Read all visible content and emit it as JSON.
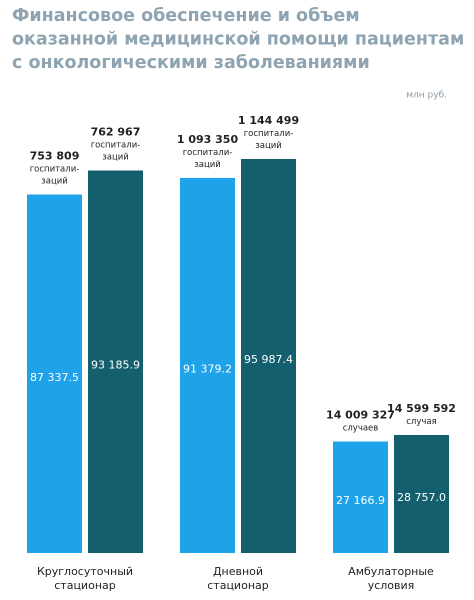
{
  "chart_data": {
    "type": "bar",
    "title": "Финансовое обеспечение и объем\nоказанной медицинской помощи пациентам\nс онкологическими заболеваниями",
    "unit": "млн руб.",
    "categories": [
      "Круглосуточный\nстационар",
      "Дневной\nстационар",
      "Амбулаторные\nусловия"
    ],
    "series": [
      {
        "color": "#1ea2e9",
        "values": [
          87337.5,
          91379.2,
          27166.9
        ],
        "value_labels": [
          "87 337.5",
          "91 379.2",
          "27 166.9"
        ],
        "annotations": [
          {
            "count": "753 809",
            "note": "госпитали-\nзаций"
          },
          {
            "count": "1 093 350",
            "note": "госпитали-\nзаций"
          },
          {
            "count": "14 009 327",
            "note": "случаев"
          }
        ]
      },
      {
        "color": "#135f6d",
        "values": [
          93185.9,
          95987.4,
          28757.0
        ],
        "value_labels": [
          "93 185.9",
          "95 987.4",
          "28 757.0"
        ],
        "annotations": [
          {
            "count": "762 967",
            "note": "госпитали-\nзаций"
          },
          {
            "count": "1 144 499",
            "note": "госпитали-\nзаций"
          },
          {
            "count": "14 599 592",
            "note": "случая"
          }
        ]
      }
    ]
  }
}
